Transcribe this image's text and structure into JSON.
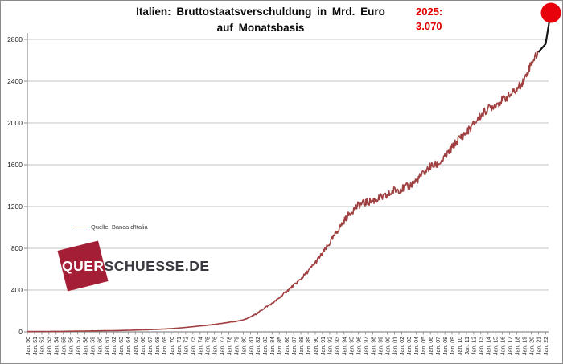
{
  "header": {
    "title_line1": "Italien: Bruttostaatsverschuldung in Mrd. Euro",
    "title_line2": "auf Monatsbasis",
    "annotation_year": "2025:",
    "annotation_value": "3.070"
  },
  "legend": {
    "label": "Quelle: Banca d'Italia"
  },
  "watermark": {
    "highlight": "QUER",
    "rest": "SCHUESSE.DE"
  },
  "colors": {
    "line": "#a04040",
    "recent_line": "#141414",
    "dot": "#e8000b",
    "annotation": "#e30000",
    "grid": "#c6c6c6",
    "axis": "#8c8c8c",
    "tick_label": "#1a1a1a",
    "watermark_red": "#a41e35",
    "watermark_text": "#3a3a42"
  },
  "chart_data": {
    "type": "line",
    "title": "Italien: Bruttostaatsverschuldung in Mrd. Euro auf Monatsbasis",
    "xlabel": "",
    "ylabel": "Mrd. Euro",
    "ylim": [
      0,
      2800
    ],
    "y_ticks": [
      0,
      400,
      800,
      1200,
      1600,
      2000,
      2400,
      2800
    ],
    "grid": "horizontal",
    "legend_position": "middle-left",
    "x_tick_labels": [
      "Jan. 50",
      "Jan. 51",
      "Jan. 52",
      "Jan. 53",
      "Jan. 54",
      "Jan. 55",
      "Jan. 56",
      "Jan. 57",
      "Jan. 58",
      "Jan. 59",
      "Jan. 60",
      "Jan. 61",
      "Jan. 62",
      "Jan. 63",
      "Jan. 64",
      "Jan. 65",
      "Jan. 66",
      "Jan. 67",
      "Jan. 68",
      "Jan. 69",
      "Jan. 70",
      "Jan. 71",
      "Jan. 72",
      "Jan. 73",
      "Jan. 74",
      "Jan. 75",
      "Jan. 76",
      "Jan. 77",
      "Jan. 78",
      "Jan. 79",
      "Jan. 80",
      "Jan. 81",
      "Jan. 82",
      "Jan. 83",
      "Jan. 84",
      "Jan. 85",
      "Jan. 86",
      "Jan. 87",
      "Jan. 88",
      "Jan. 89",
      "Jan. 90",
      "Jan. 91",
      "Jan. 92",
      "Jan. 93",
      "Jan. 94",
      "Jan. 95",
      "Jan. 96",
      "Jan. 97",
      "Jan. 98",
      "Jan. 99",
      "Jan. 00",
      "Jan. 01",
      "Jan. 02",
      "Jan. 03",
      "Jan. 04",
      "Jan. 05",
      "Jan. 06",
      "Jan. 07",
      "Jan. 08",
      "Jan. 09",
      "Jan. 10",
      "Jan. 11",
      "Jan. 12",
      "Jan. 13",
      "Jan. 14",
      "Jan. 15",
      "Jan. 16",
      "Jan. 17",
      "Jan. 18",
      "Jan. 19",
      "Jan. 20",
      "Jan. 21",
      "Jan. 22"
    ],
    "series": [
      {
        "name": "Quelle: Banca d'Italia",
        "x": [
          1950,
          1951,
          1952,
          1953,
          1954,
          1955,
          1956,
          1957,
          1958,
          1959,
          1960,
          1961,
          1962,
          1963,
          1964,
          1965,
          1966,
          1967,
          1968,
          1969,
          1970,
          1971,
          1972,
          1973,
          1974,
          1975,
          1976,
          1977,
          1978,
          1979,
          1980,
          1981,
          1982,
          1983,
          1984,
          1985,
          1986,
          1987,
          1988,
          1989,
          1990,
          1991,
          1992,
          1993,
          1994,
          1995,
          1996,
          1997,
          1998,
          1999,
          2000,
          2001,
          2002,
          2003,
          2004,
          2005,
          2006,
          2007,
          2008,
          2009,
          2010,
          2011,
          2012,
          2013,
          2014,
          2015,
          2016,
          2017,
          2018,
          2019,
          2020,
          2021,
          2022,
          2023,
          2024,
          2025
        ],
        "values": [
          3,
          3,
          4,
          4,
          5,
          5,
          6,
          7,
          8,
          9,
          10,
          11,
          12,
          13,
          15,
          17,
          19,
          21,
          24,
          27,
          31,
          36,
          42,
          49,
          56,
          63,
          71,
          80,
          90,
          100,
          114,
          142,
          180,
          232,
          271,
          325,
          386,
          444,
          506,
          580,
          663,
          750,
          847,
          959,
          1063,
          1151,
          1213,
          1238,
          1254,
          1282,
          1300,
          1358,
          1369,
          1394,
          1445,
          1514,
          1584,
          1602,
          1667,
          1763,
          1851,
          1907,
          1990,
          2070,
          2137,
          2173,
          2218,
          2263,
          2321,
          2410,
          2573,
          2678,
          2757,
          2863,
          2966,
          3070
        ]
      }
    ],
    "recent_segment_from_year": 2021,
    "highlight_point": {
      "year": 2025,
      "value": 3070,
      "label": "2025: 3.070"
    }
  }
}
